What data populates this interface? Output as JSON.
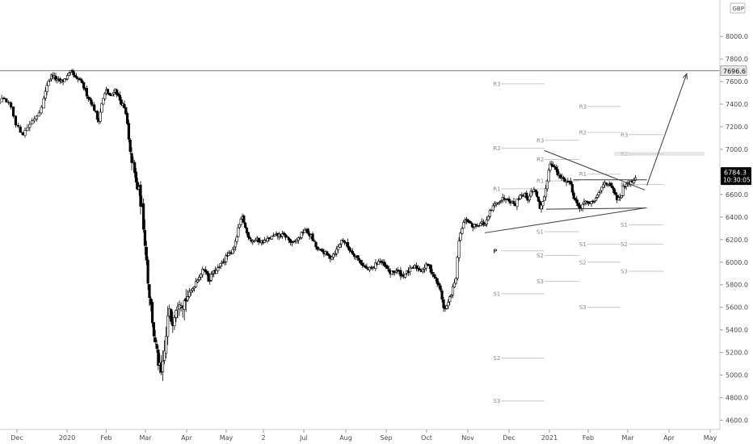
{
  "chart_data": {
    "type": "candlestick",
    "title": "",
    "currency": "GBP",
    "axis_top_label_partial": "8",
    "y_ticks": [
      4600,
      4800,
      5000,
      5200,
      5400,
      5600,
      5800,
      6000,
      6200,
      6400,
      6600,
      6800,
      7000,
      7200,
      7400,
      7600,
      7800,
      8000
    ],
    "y_tick_labels": [
      "4600.0",
      "4800.0",
      "5000.0",
      "5200.0",
      "5400.0",
      "5600.0",
      "5800.0",
      "6000.0",
      "6200.0",
      "6400.0",
      "6600.0",
      "6800.0",
      "7000.0",
      "7200.0",
      "7400.0",
      "7600.0",
      "7800.0",
      "8000.0"
    ],
    "ylim": [
      4570,
      8230
    ],
    "x_ticks": [
      {
        "label": "Dec",
        "t": 0.5
      },
      {
        "label": "2020",
        "t": 1.5
      },
      {
        "label": "Feb",
        "t": 2.5
      },
      {
        "label": "Mar",
        "t": 3.5
      },
      {
        "label": "Apr",
        "t": 4.5
      },
      {
        "label": "May",
        "t": 5.5
      },
      {
        "label": "2",
        "t": 6.5
      },
      {
        "label": "Jul",
        "t": 7.5
      },
      {
        "label": "Aug",
        "t": 8.5
      },
      {
        "label": "Sep",
        "t": 9.5
      },
      {
        "label": "Oct",
        "t": 10.5
      },
      {
        "label": "Nov",
        "t": 11.5
      },
      {
        "label": "Dec",
        "t": 12.5
      },
      {
        "label": "2021",
        "t": 13.5
      },
      {
        "label": "Feb",
        "t": 14.5
      },
      {
        "label": "Mar",
        "t": 15.5
      },
      {
        "label": "Apr",
        "t": 16.5
      },
      {
        "label": "May",
        "t": 17.5
      }
    ],
    "xlim": [
      0,
      18.0
    ],
    "last_price": "6784.3",
    "countdown": "10:30:05",
    "horizontal_level": 7696.6,
    "horizontal_level_label": "7696.6",
    "price_path": [
      [
        0.0,
        7340
      ],
      [
        0.12,
        7290
      ],
      [
        0.22,
        7390
      ],
      [
        0.32,
        7440
      ],
      [
        0.45,
        7380
      ],
      [
        0.55,
        7200
      ],
      [
        0.65,
        7140
      ],
      [
        0.78,
        7240
      ],
      [
        0.9,
        7320
      ],
      [
        1.0,
        7460
      ],
      [
        1.08,
        7600
      ],
      [
        1.2,
        7660
      ],
      [
        1.32,
        7610
      ],
      [
        1.45,
        7600
      ],
      [
        1.58,
        7640
      ],
      [
        1.7,
        7690
      ],
      [
        1.8,
        7620
      ],
      [
        1.9,
        7620
      ],
      [
        2.0,
        7560
      ],
      [
        2.1,
        7480
      ],
      [
        2.2,
        7420
      ],
      [
        2.3,
        7340
      ],
      [
        2.38,
        7240
      ],
      [
        2.48,
        7420
      ],
      [
        2.58,
        7520
      ],
      [
        2.7,
        7460
      ],
      [
        2.8,
        7540
      ],
      [
        2.92,
        7440
      ],
      [
        3.02,
        7380
      ],
      [
        3.1,
        7280
      ],
      [
        3.18,
        6980
      ],
      [
        3.26,
        6880
      ],
      [
        3.34,
        6700
      ],
      [
        3.42,
        6620
      ],
      [
        3.5,
        6460
      ],
      [
        3.58,
        6160
      ],
      [
        3.66,
        5790
      ],
      [
        3.74,
        5560
      ],
      [
        3.82,
        5300
      ],
      [
        3.92,
        5100
      ],
      [
        4.0,
        4990
      ],
      [
        4.08,
        5240
      ],
      [
        4.16,
        5580
      ],
      [
        4.24,
        5460
      ],
      [
        4.32,
        5600
      ],
      [
        4.4,
        5680
      ],
      [
        4.5,
        5640
      ],
      [
        4.6,
        5700
      ],
      [
        4.7,
        5760
      ],
      [
        4.8,
        5840
      ],
      [
        4.9,
        5900
      ],
      [
        5.0,
        5950
      ],
      [
        5.1,
        5830
      ],
      [
        5.2,
        5900
      ],
      [
        5.32,
        5920
      ],
      [
        5.45,
        5980
      ],
      [
        5.58,
        6040
      ],
      [
        5.72,
        6080
      ],
      [
        5.85,
        6170
      ],
      [
        5.95,
        6320
      ],
      [
        6.05,
        6400
      ],
      [
        6.15,
        6260
      ],
      [
        6.28,
        6190
      ],
      [
        6.4,
        6200
      ],
      [
        6.55,
        6180
      ],
      [
        6.7,
        6200
      ],
      [
        6.85,
        6230
      ],
      [
        7.0,
        6240
      ],
      [
        7.15,
        6230
      ],
      [
        7.3,
        6160
      ],
      [
        7.45,
        6210
      ],
      [
        7.6,
        6290
      ],
      [
        7.75,
        6230
      ],
      [
        7.9,
        6110
      ],
      [
        8.05,
        6090
      ],
      [
        8.2,
        6040
      ],
      [
        8.35,
        6100
      ],
      [
        8.5,
        6210
      ],
      [
        8.65,
        6120
      ],
      [
        8.8,
        6060
      ],
      [
        8.95,
        5990
      ],
      [
        9.1,
        5930
      ],
      [
        9.25,
        5950
      ],
      [
        9.4,
        6020
      ],
      [
        9.55,
        5960
      ],
      [
        9.7,
        5900
      ],
      [
        9.85,
        5930
      ],
      [
        10.0,
        5880
      ],
      [
        10.15,
        5920
      ],
      [
        10.3,
        5960
      ],
      [
        10.45,
        5930
      ],
      [
        10.6,
        5980
      ],
      [
        10.75,
        5880
      ],
      [
        10.9,
        5760
      ],
      [
        11.0,
        5570
      ],
      [
        11.1,
        5640
      ],
      [
        11.2,
        5760
      ],
      [
        11.28,
        5840
      ],
      [
        11.36,
        6180
      ],
      [
        11.46,
        6340
      ],
      [
        11.56,
        6380
      ],
      [
        11.68,
        6320
      ],
      [
        11.8,
        6330
      ],
      [
        11.92,
        6350
      ],
      [
        12.02,
        6330
      ],
      [
        12.12,
        6440
      ],
      [
        12.22,
        6500
      ],
      [
        12.32,
        6540
      ],
      [
        12.42,
        6560
      ],
      [
        12.52,
        6580
      ],
      [
        12.62,
        6540
      ],
      [
        12.72,
        6510
      ],
      [
        12.84,
        6600
      ],
      [
        12.94,
        6600
      ],
      [
        13.04,
        6560
      ],
      [
        13.14,
        6640
      ],
      [
        13.24,
        6630
      ],
      [
        13.34,
        6460
      ],
      [
        13.44,
        6540
      ],
      [
        13.52,
        6720
      ],
      [
        13.6,
        6880
      ],
      [
        13.7,
        6860
      ],
      [
        13.8,
        6770
      ],
      [
        13.92,
        6740
      ],
      [
        14.02,
        6720
      ],
      [
        14.12,
        6710
      ],
      [
        14.22,
        6570
      ],
      [
        14.32,
        6500
      ],
      [
        14.42,
        6480
      ],
      [
        14.52,
        6560
      ],
      [
        14.62,
        6500
      ],
      [
        14.72,
        6540
      ],
      [
        14.82,
        6580
      ],
      [
        14.92,
        6650
      ],
      [
        15.02,
        6720
      ],
      [
        15.12,
        6680
      ],
      [
        15.22,
        6640
      ],
      [
        15.3,
        6560
      ],
      [
        15.4,
        6560
      ],
      [
        15.48,
        6680
      ],
      [
        15.58,
        6710
      ],
      [
        15.7,
        6720
      ],
      [
        15.8,
        6784
      ]
    ],
    "pivot_sets": [
      {
        "x_start": 12.2,
        "x_end": 13.45,
        "levels": [
          {
            "label": "R3",
            "value": 7580
          },
          {
            "label": "R2",
            "value": 7010
          },
          {
            "label": "R1",
            "value": 6650
          },
          {
            "label": "P",
            "value": 6100
          },
          {
            "label": "S1",
            "value": 5720
          },
          {
            "label": "S2",
            "value": 5150
          },
          {
            "label": "S3",
            "value": 4770
          }
        ]
      },
      {
        "x_start": 13.25,
        "x_end": 14.35,
        "levels": [
          {
            "label": "R3",
            "value": 7080
          },
          {
            "label": "R2",
            "value": 6910
          },
          {
            "label": "R1",
            "value": 6720
          },
          {
            "label": "S1",
            "value": 6270
          },
          {
            "label": "S2",
            "value": 6060
          },
          {
            "label": "S3",
            "value": 5830
          }
        ]
      },
      {
        "x_start": 14.35,
        "x_end": 15.4,
        "levels": [
          {
            "label": "R3",
            "value": 7380
          },
          {
            "label": "R2",
            "value": 7150
          },
          {
            "label": "R1",
            "value": 6780
          },
          {
            "label": "S1",
            "value": 6160
          },
          {
            "label": "S2",
            "value": 6000
          },
          {
            "label": "S3",
            "value": 5600
          }
        ]
      },
      {
        "x_start": 15.4,
        "x_end": 16.45,
        "levels": [
          {
            "label": "R3",
            "value": 7130
          },
          {
            "label": "R2",
            "value": 6960
          },
          {
            "label": "R1",
            "value": 6690
          },
          {
            "label": "S1",
            "value": 6330
          },
          {
            "label": "S2",
            "value": 6160
          },
          {
            "label": "S3",
            "value": 5920
          }
        ]
      }
    ],
    "trendlines": [
      {
        "name": "upper",
        "from": [
          13.45,
          6990
        ],
        "to": [
          16.0,
          6640
        ]
      },
      {
        "name": "lower",
        "from": [
          12.0,
          6260
        ],
        "to": [
          16.0,
          6480
        ]
      },
      {
        "name": "support-short",
        "from": [
          13.5,
          6470
        ],
        "to": [
          16.05,
          6480
        ]
      },
      {
        "name": "upper-short",
        "from": [
          14.2,
          6730
        ],
        "to": [
          16.05,
          6730
        ]
      },
      {
        "name": "projection",
        "from": [
          16.05,
          6680
        ],
        "to": [
          17.0,
          7670
        ]
      }
    ]
  }
}
